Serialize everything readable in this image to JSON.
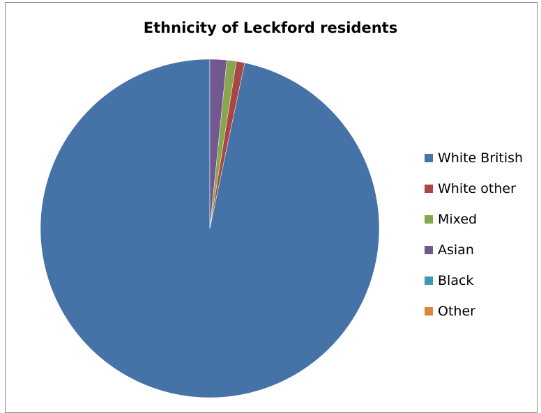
{
  "chart_data": {
    "type": "pie",
    "title": "Ethnicity of Leckford residents",
    "legend_position": "right",
    "start_angle": "top, clockwise",
    "categories": [
      "White British",
      "White other",
      "Mixed",
      "Asian",
      "Black",
      "Other"
    ],
    "values": [
      96.7,
      0.8,
      0.9,
      1.6,
      0.0,
      0.0
    ],
    "value_unit": "%",
    "colors": [
      "#4572A7",
      "#AA4643",
      "#89A54E",
      "#71588F",
      "#4198AF",
      "#DB843D"
    ]
  }
}
